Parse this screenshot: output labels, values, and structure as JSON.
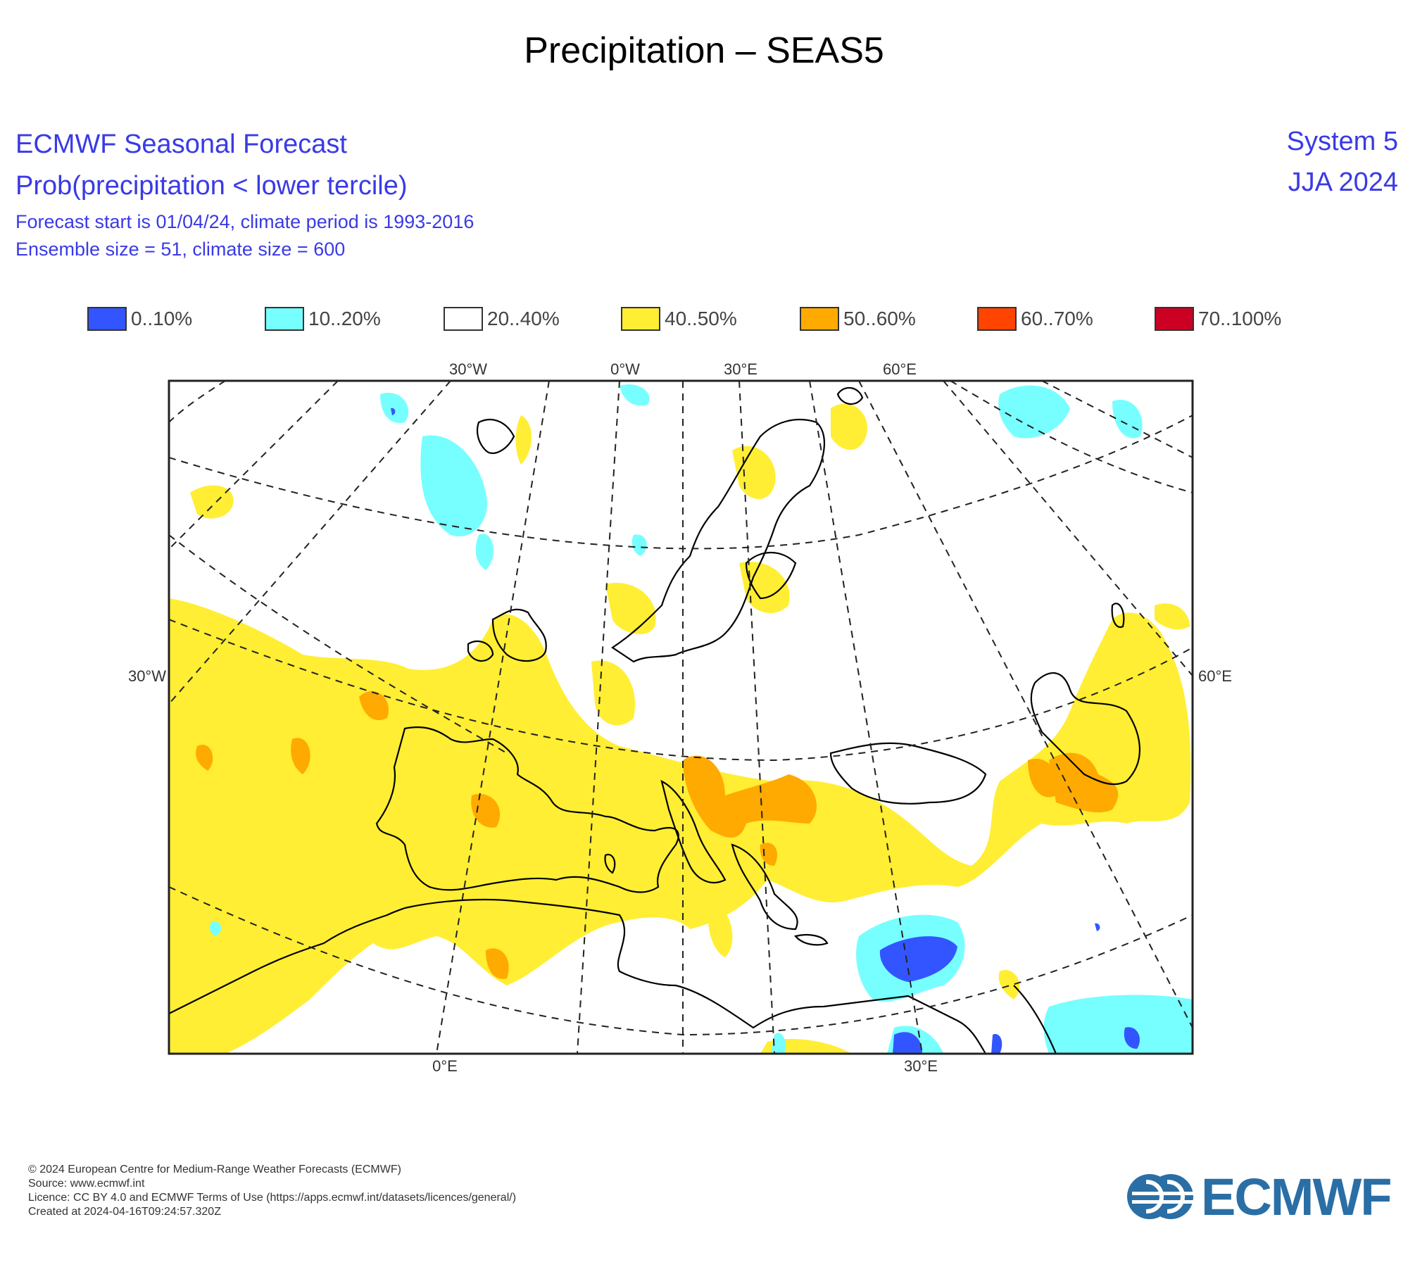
{
  "title": "Precipitation – SEAS5",
  "header": {
    "line1": "ECMWF Seasonal Forecast",
    "line2": "Prob(precipitation < lower tercile)",
    "line3": "Forecast start is 01/04/24, climate period is 1993-2016",
    "line4": "Ensemble size = 51, climate size = 600",
    "system": "System 5",
    "season": "JJA 2024"
  },
  "legend": {
    "items": [
      {
        "label": "0..10%",
        "color": "#3355ff"
      },
      {
        "label": "10..20%",
        "color": "#77ffff"
      },
      {
        "label": "20..40%",
        "color": "#ffffff"
      },
      {
        "label": "40..50%",
        "color": "#ffee33"
      },
      {
        "label": "50..60%",
        "color": "#ffaa00"
      },
      {
        "label": "60..70%",
        "color": "#ff4400"
      },
      {
        "label": "70..100%",
        "color": "#cc0022"
      }
    ]
  },
  "map": {
    "top_labels": [
      "30°W",
      "0°W",
      "30°E",
      "60°E"
    ],
    "bottom_labels": [
      "0°E",
      "30°E"
    ],
    "left_label": "30°W",
    "right_label": "60°E"
  },
  "footer": {
    "line1": "© 2024 European Centre for Medium-Range Weather Forecasts (ECMWF)",
    "line2": "Source: www.ecmwf.int",
    "line3": "Licence: CC BY 4.0 and ECMWF Terms of Use (https://apps.ecmwf.int/datasets/licences/general/)",
    "line4": "Created at 2024-04-16T09:24:57.320Z"
  },
  "logo": {
    "text": "ECMWF",
    "icon": "ecmwf-logo-icon"
  }
}
